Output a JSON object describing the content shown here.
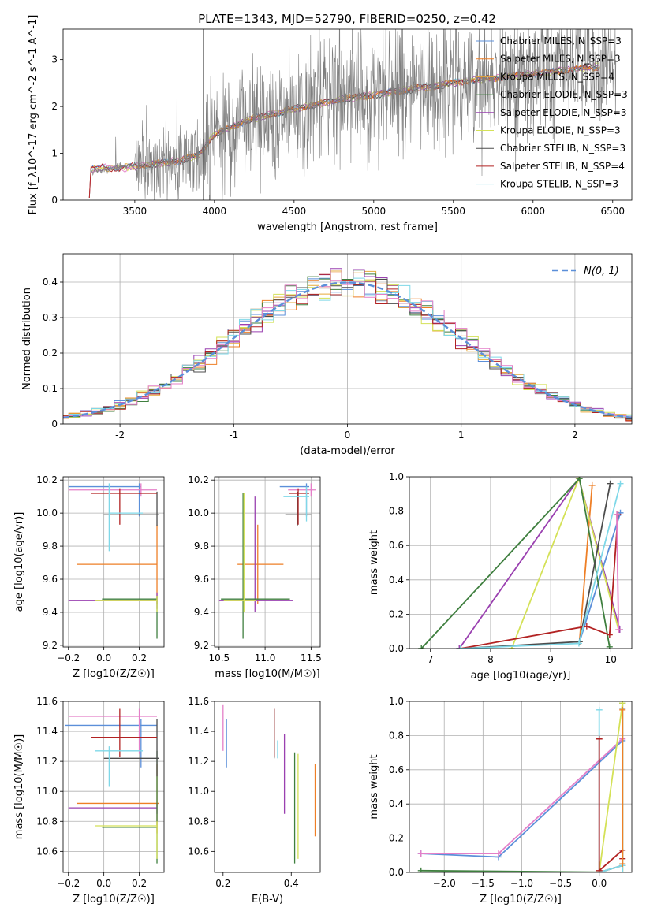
{
  "figure": {
    "title": "PLATE=1343, MJD=52790, FIBERID=0250, z=0.42"
  },
  "colors": {
    "data": "#7f7f7f",
    "series": [
      "#5b8fd9",
      "#ee7f26",
      "#e6a93a",
      "#3f7f3f",
      "#9a40b0",
      "#d4e157",
      "#4d4d4d",
      "#b22222",
      "#7fd8e8"
    ],
    "extra": "#e47fc8",
    "gaussian": "#5b8fd9"
  },
  "chart_data": [
    {
      "id": "spectrum",
      "type": "line",
      "xlabel": "wavelength [Angstrom, rest frame]",
      "ylabel": "Flux [f_λ10^-17 erg cm^-2 s^-1 A^-1]",
      "xlim": [
        3050,
        6620
      ],
      "ylim": [
        0,
        3.65
      ],
      "xticks": [
        3500,
        4000,
        4500,
        5000,
        5500,
        6000,
        6500
      ],
      "yticks": [
        0,
        1,
        2,
        3
      ],
      "grid": false,
      "legend_position": "top-right",
      "data_flux_anchor": {
        "x": [
          3220,
          3500,
          3900,
          4000,
          4500,
          5000,
          5500,
          6000,
          6500
        ],
        "y": [
          0.6,
          0.75,
          0.9,
          1.5,
          2.0,
          2.3,
          2.5,
          2.7,
          2.85
        ]
      },
      "models": {
        "x": [
          3210,
          3220,
          3300,
          3400,
          3500,
          3700,
          3900,
          4000,
          4200,
          4500,
          4800,
          5000,
          5300,
          5600,
          6000,
          6400
        ],
        "y": [
          0.05,
          0.65,
          0.7,
          0.68,
          0.72,
          0.8,
          0.95,
          1.4,
          1.7,
          1.95,
          2.15,
          2.25,
          2.4,
          2.55,
          2.7,
          2.85
        ]
      },
      "legend": [
        "Chabrier MILES, N_SSP=3",
        "Salpeter MILES, N_SSP=3",
        "Kroupa MILES, N_SSP=4",
        "Chabrier ELODIE, N_SSP=3",
        "Salpeter ELODIE, N_SSP=3",
        "Kroupa ELODIE, N_SSP=3",
        "Chabrier STELIB, N_SSP=3",
        "Salpeter STELIB, N_SSP=4",
        "Kroupa STELIB, N_SSP=3"
      ]
    },
    {
      "id": "residuals",
      "type": "histogram",
      "xlabel": "(data-model)/error",
      "ylabel": "Normed distribution",
      "xlim": [
        -2.5,
        2.5
      ],
      "ylim": [
        0,
        0.48
      ],
      "xticks": [
        -2,
        -1,
        0,
        1,
        2
      ],
      "yticks": [
        0.0,
        0.1,
        0.2,
        0.3,
        0.4
      ],
      "grid": true,
      "bin_width": 0.1,
      "legend": [
        "N(0, 1)"
      ],
      "legend_position": "top-right",
      "gaussian": {
        "mean": 0,
        "sigma": 1
      }
    },
    {
      "id": "age-vs-Z",
      "type": "errorbar",
      "xlabel": "Z [log10(Z/Z☉)]",
      "ylabel": "age [log10(age/yr)]",
      "xlim": [
        -0.23,
        0.34
      ],
      "ylim": [
        9.19,
        10.22
      ],
      "xticks": [
        -0.2,
        0.0,
        0.2
      ],
      "xticklabels": [
        "−0.2",
        "0.0",
        "0.2"
      ],
      "yticks": [
        9.2,
        9.4,
        9.6,
        9.8,
        10.0,
        10.2
      ],
      "yticklabels": [
        "9.2",
        "9.4",
        "9.6",
        "9.8",
        "10.0",
        "10.2"
      ],
      "grid": true,
      "points": [
        {
          "c": 0,
          "x": 0.2,
          "y": 10.16,
          "xl": -0.2,
          "xh": 0.21,
          "yl": 9.98,
          "yh": 10.18
        },
        {
          "c": 1,
          "x": 0.3,
          "y": 9.69,
          "xl": -0.15,
          "xh": 0.3,
          "yl": 9.45,
          "yh": 9.93
        },
        {
          "c": 9,
          "x": 0.21,
          "y": 10.14,
          "xl": -0.2,
          "xh": 0.3,
          "yl": 10.1,
          "yh": 10.18
        },
        {
          "c": 4,
          "x": 0.3,
          "y": 9.47,
          "xl": -0.2,
          "xh": 0.3,
          "yl": 9.42,
          "yh": 9.52
        },
        {
          "c": 3,
          "x": 0.3,
          "y": 9.48,
          "xl": -0.01,
          "xh": 0.3,
          "yl": 9.24,
          "yh": 9.5
        },
        {
          "c": 5,
          "x": 0.3,
          "y": 9.47,
          "xl": -0.05,
          "xh": 0.3,
          "yl": 9.4,
          "yh": 9.5
        },
        {
          "c": 6,
          "x": 0.3,
          "y": 9.99,
          "xl": 0.0,
          "xh": 0.31,
          "yl": 9.92,
          "yh": 10.13
        },
        {
          "c": 7,
          "x": 0.09,
          "y": 10.12,
          "xl": -0.07,
          "xh": 0.3,
          "yl": 9.93,
          "yh": 10.15
        },
        {
          "c": 8,
          "x": 0.03,
          "y": 10.0,
          "xl": 0.03,
          "xh": 0.22,
          "yl": 9.77,
          "yh": 10.18
        }
      ]
    },
    {
      "id": "age-vs-mass",
      "type": "errorbar",
      "xlabel": "mass [log10(M/M☉)]",
      "ylabel": "",
      "xlim": [
        10.45,
        11.6
      ],
      "ylim": [
        9.19,
        10.22
      ],
      "xticks": [
        10.5,
        11.0,
        11.5
      ],
      "xticklabels": [
        "10.5",
        "11.0",
        "11.5"
      ],
      "yticks": [
        9.2,
        9.4,
        9.6,
        9.8,
        10.0,
        10.2
      ],
      "yticklabels": [
        "9.2",
        "9.4",
        "9.6",
        "9.8",
        "10.0",
        "10.2"
      ],
      "grid": true,
      "points": [
        {
          "c": 0,
          "x": 11.45,
          "y": 10.16,
          "xl": 11.16,
          "xh": 11.48,
          "yl": 9.98,
          "yh": 10.18
        },
        {
          "c": 1,
          "x": 10.92,
          "y": 9.69,
          "xl": 10.7,
          "xh": 11.2,
          "yl": 9.45,
          "yh": 9.93
        },
        {
          "c": 9,
          "x": 11.5,
          "y": 10.14,
          "xl": 11.25,
          "xh": 11.55,
          "yl": 10.1,
          "yh": 10.18
        },
        {
          "c": 4,
          "x": 10.89,
          "y": 9.47,
          "xl": 10.5,
          "xh": 11.3,
          "yl": 9.4,
          "yh": 10.1
        },
        {
          "c": 3,
          "x": 10.76,
          "y": 9.48,
          "xl": 10.52,
          "xh": 11.27,
          "yl": 9.24,
          "yh": 10.12
        },
        {
          "c": 5,
          "x": 10.77,
          "y": 9.47,
          "xl": 10.55,
          "xh": 10.9,
          "yl": 9.4,
          "yh": 10.12
        },
        {
          "c": 6,
          "x": 11.35,
          "y": 9.99,
          "xl": 11.22,
          "xh": 11.5,
          "yl": 9.92,
          "yh": 10.13
        },
        {
          "c": 7,
          "x": 11.36,
          "y": 10.12,
          "xl": 11.26,
          "xh": 11.48,
          "yl": 9.93,
          "yh": 10.15
        },
        {
          "c": 8,
          "x": 11.45,
          "y": 10.1,
          "xl": 11.2,
          "xh": 11.48,
          "yl": 9.95,
          "yh": 10.16
        }
      ]
    },
    {
      "id": "weight-vs-age",
      "type": "line",
      "xlabel": "age [log10(age/yr)]",
      "ylabel": "mass weight",
      "xlim": [
        6.65,
        10.35
      ],
      "ylim": [
        0,
        1.0
      ],
      "xticks": [
        7,
        8,
        9,
        10
      ],
      "xticklabels": [
        "7",
        "8",
        "9",
        "10"
      ],
      "yticks": [
        0.0,
        0.2,
        0.4,
        0.6,
        0.8,
        1.0
      ],
      "yticklabels": [
        "0.0",
        "0.2",
        "0.4",
        "0.6",
        "0.8",
        "1.0"
      ],
      "grid": true,
      "series": [
        {
          "c": 0,
          "x": [
            9.48,
            10.16
          ],
          "y": [
            0.04,
            0.79
          ]
        },
        {
          "c": 1,
          "x": [
            9.48,
            9.69
          ],
          "y": [
            0.04,
            0.95
          ]
        },
        {
          "c": 4,
          "x": [
            7.48,
            9.47,
            10.15
          ],
          "y": [
            0.0,
            0.99,
            0.11
          ]
        },
        {
          "c": 5,
          "x": [
            8.35,
            9.47,
            10.13
          ],
          "y": [
            0.0,
            0.99,
            0.11
          ]
        },
        {
          "c": 3,
          "x": [
            6.85,
            9.48,
            9.98
          ],
          "y": [
            0.0,
            0.99,
            0.01
          ]
        },
        {
          "c": 6,
          "x": [
            7.5,
            9.48,
            9.99
          ],
          "y": [
            0.0,
            0.04,
            0.96
          ]
        },
        {
          "c": 7,
          "x": [
            7.5,
            9.6,
            9.98,
            10.12
          ],
          "y": [
            0.0,
            0.13,
            0.08,
            0.78
          ]
        },
        {
          "c": 8,
          "x": [
            7.5,
            9.47,
            10.16
          ],
          "y": [
            0.0,
            0.03,
            0.96
          ]
        },
        {
          "c": 9,
          "x": [
            10.1,
            10.13
          ],
          "y": [
            0.78,
            0.11
          ]
        }
      ]
    },
    {
      "id": "mass-vs-Z",
      "type": "errorbar",
      "xlabel": "Z [log10(Z/Z☉)]",
      "ylabel": "mass [log10(M/M☉)]",
      "xlim": [
        -0.23,
        0.34
      ],
      "ylim": [
        10.46,
        11.6
      ],
      "xticks": [
        -0.2,
        0.0,
        0.2
      ],
      "xticklabels": [
        "−0.2",
        "0.0",
        "0.2"
      ],
      "yticks": [
        10.6,
        10.8,
        11.0,
        11.2,
        11.4,
        11.6
      ],
      "yticklabels": [
        "10.6",
        "10.8",
        "11.0",
        "11.2",
        "11.4",
        "11.6"
      ],
      "grid": true,
      "points": [
        {
          "c": 0,
          "x": 0.21,
          "y": 11.44,
          "xl": -0.22,
          "xh": 0.3,
          "yl": 11.16,
          "yh": 11.48
        },
        {
          "c": 1,
          "x": 0.3,
          "y": 10.92,
          "xl": -0.15,
          "xh": 0.31,
          "yl": 10.72,
          "yh": 11.18
        },
        {
          "c": 9,
          "x": 0.2,
          "y": 11.5,
          "xl": -0.2,
          "xh": 0.3,
          "yl": 11.25,
          "yh": 11.55
        },
        {
          "c": 4,
          "x": 0.3,
          "y": 10.89,
          "xl": -0.2,
          "xh": 0.3,
          "yl": 10.85,
          "yh": 10.92
        },
        {
          "c": 3,
          "x": 0.3,
          "y": 10.76,
          "xl": -0.01,
          "xh": 0.3,
          "yl": 10.52,
          "yh": 11.27
        },
        {
          "c": 5,
          "x": 0.3,
          "y": 10.77,
          "xl": -0.05,
          "xh": 0.3,
          "yl": 10.55,
          "yh": 10.8
        },
        {
          "c": 6,
          "x": 0.3,
          "y": 11.22,
          "xl": 0.0,
          "xh": 0.31,
          "yl": 11.1,
          "yh": 11.48
        },
        {
          "c": 7,
          "x": 0.09,
          "y": 11.36,
          "xl": -0.07,
          "xh": 0.3,
          "yl": 11.23,
          "yh": 11.55
        },
        {
          "c": 8,
          "x": 0.03,
          "y": 11.27,
          "xl": -0.05,
          "xh": 0.22,
          "yl": 11.03,
          "yh": 11.3
        }
      ]
    },
    {
      "id": "mass-vs-EBV",
      "type": "errorbar",
      "xlabel": "E(B-V)",
      "ylabel": "",
      "xlim": [
        0.175,
        0.485
      ],
      "ylim": [
        10.46,
        11.6
      ],
      "xticks": [
        0.2,
        0.4
      ],
      "xticklabels": [
        "0.2",
        "0.4"
      ],
      "yticks": [
        10.6,
        10.8,
        11.0,
        11.2,
        11.4,
        11.6
      ],
      "yticklabels": [
        "10.6",
        "10.8",
        "11.0",
        "11.2",
        "11.4",
        "11.6"
      ],
      "grid": false,
      "points": [
        {
          "c": 0,
          "x": 0.21,
          "y": 11.32,
          "xl": 0.21,
          "xh": 0.21,
          "yl": 11.16,
          "yh": 11.48
        },
        {
          "c": 9,
          "x": 0.2,
          "y": 11.43,
          "xl": 0.2,
          "xh": 0.2,
          "yl": 11.27,
          "yh": 11.58
        },
        {
          "c": 1,
          "x": 0.47,
          "y": 10.94,
          "xl": 0.47,
          "xh": 0.47,
          "yl": 10.7,
          "yh": 11.18
        },
        {
          "c": 4,
          "x": 0.38,
          "y": 11.04,
          "xl": 0.38,
          "xh": 0.38,
          "yl": 10.85,
          "yh": 11.38
        },
        {
          "c": 3,
          "x": 0.41,
          "y": 10.88,
          "xl": 0.41,
          "xh": 0.41,
          "yl": 10.52,
          "yh": 11.26
        },
        {
          "c": 5,
          "x": 0.42,
          "y": 10.9,
          "xl": 0.42,
          "xh": 0.42,
          "yl": 10.55,
          "yh": 11.25
        },
        {
          "c": 6,
          "x": 0.35,
          "y": 11.36,
          "xl": 0.35,
          "xh": 0.35,
          "yl": 11.22,
          "yh": 11.55
        },
        {
          "c": 7,
          "x": 0.35,
          "y": 11.36,
          "xl": 0.35,
          "xh": 0.35,
          "yl": 11.23,
          "yh": 11.55
        },
        {
          "c": 8,
          "x": 0.36,
          "y": 11.28,
          "xl": 0.36,
          "xh": 0.36,
          "yl": 11.22,
          "yh": 11.34
        }
      ]
    },
    {
      "id": "weight-vs-Z",
      "type": "line",
      "xlabel": "Z [log10(Z/Z☉)]",
      "ylabel": "mass weight",
      "xlim": [
        -2.45,
        0.42
      ],
      "ylim": [
        0,
        1.0
      ],
      "xticks": [
        -2.0,
        -1.5,
        -1.0,
        -0.5,
        0.0
      ],
      "xticklabels": [
        "−2.0",
        "−1.5",
        "−1.0",
        "−0.5",
        "0.0"
      ],
      "yticks": [
        0.0,
        0.2,
        0.4,
        0.6,
        0.8,
        1.0
      ],
      "yticklabels": [
        "0.0",
        "0.2",
        "0.4",
        "0.6",
        "0.8",
        "1.0"
      ],
      "grid": true,
      "series": [
        {
          "c": 0,
          "x": [
            -2.3,
            -1.3,
            0.3
          ],
          "y": [
            0.11,
            0.09,
            0.77
          ]
        },
        {
          "c": 9,
          "x": [
            -2.3,
            -1.3,
            0.3
          ],
          "y": [
            0.11,
            0.11,
            0.78
          ]
        },
        {
          "c": 3,
          "x": [
            -2.3,
            0.3,
            0.3
          ],
          "y": [
            0.01,
            0.0,
            0.99
          ]
        },
        {
          "c": 6,
          "x": [
            0.0,
            0.3,
            0.3
          ],
          "y": [
            0.0,
            0.04,
            0.96
          ]
        },
        {
          "c": 5,
          "x": [
            0.0,
            0.3,
            0.3
          ],
          "y": [
            0.0,
            0.99,
            0.0
          ]
        },
        {
          "c": 8,
          "x": [
            0.0,
            0.0,
            0.3,
            0.3
          ],
          "y": [
            0.95,
            0.0,
            0.04,
            0.0
          ]
        },
        {
          "c": 7,
          "x": [
            0.0,
            0.0,
            0.3,
            0.3
          ],
          "y": [
            0.78,
            0.01,
            0.13,
            0.08
          ]
        },
        {
          "c": 1,
          "x": [
            0.3,
            0.3
          ],
          "y": [
            0.95,
            0.05
          ]
        }
      ]
    }
  ]
}
